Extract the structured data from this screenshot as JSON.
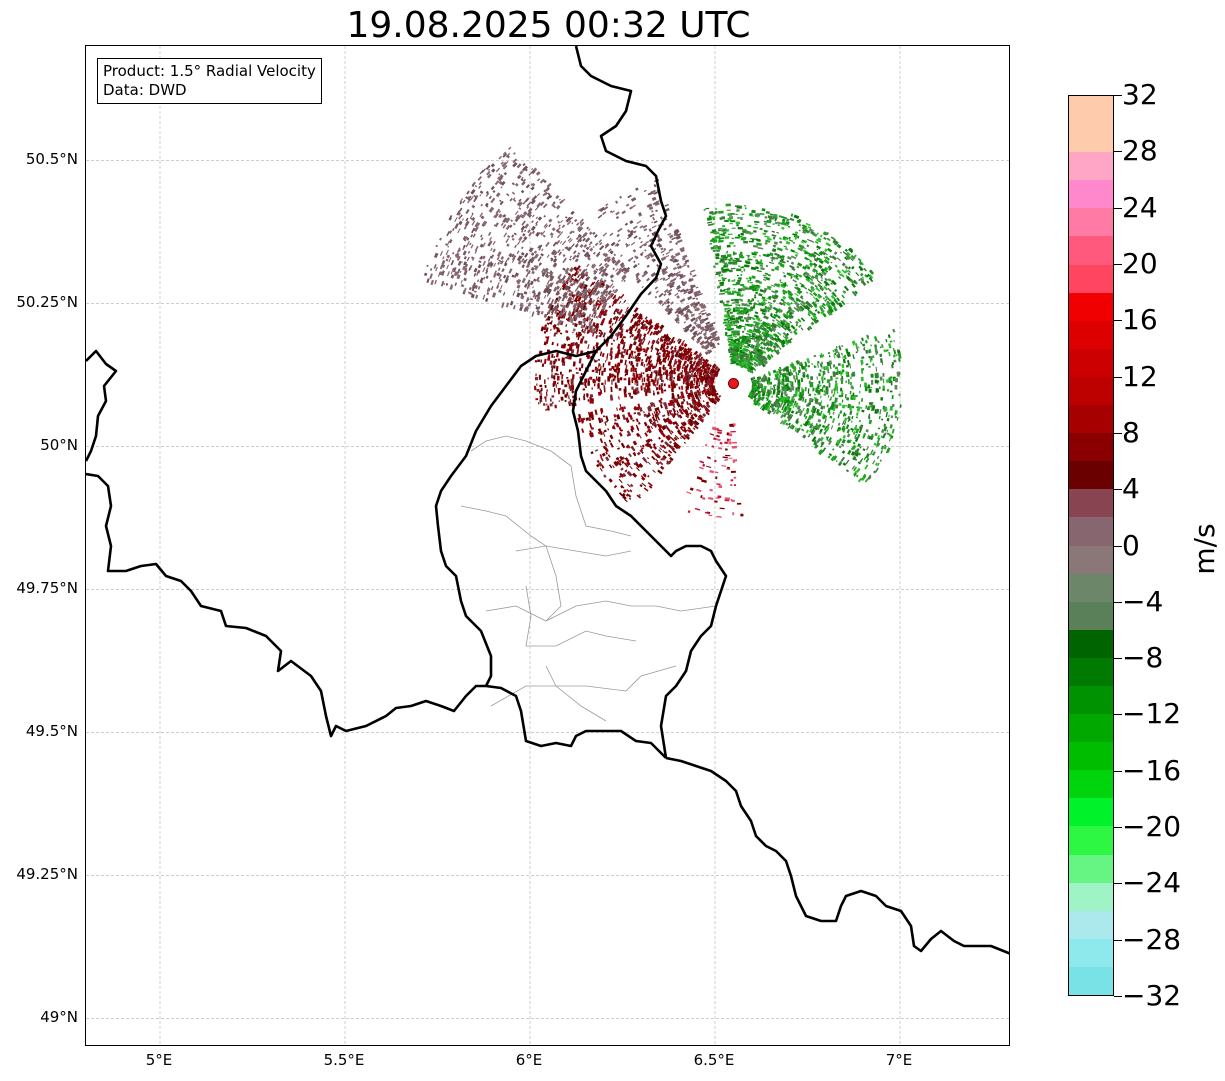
{
  "title": "19.08.2025 00:32 UTC",
  "info_box": {
    "product": "Product: 1.5° Radial Velocity",
    "data": "Data: DWD"
  },
  "map": {
    "lon_range": [
      4.8,
      7.3
    ],
    "lat_range": [
      48.95,
      50.7
    ],
    "lat_ticks": [
      {
        "value": 50.5,
        "label": "50.5°N"
      },
      {
        "value": 50.25,
        "label": "50.25°N"
      },
      {
        "value": 50.0,
        "label": "50°N"
      },
      {
        "value": 49.75,
        "label": "49.75°N"
      },
      {
        "value": 49.5,
        "label": "49.5°N"
      },
      {
        "value": 49.25,
        "label": "49.25°N"
      },
      {
        "value": 49.0,
        "label": "49°N"
      }
    ],
    "lon_ticks": [
      {
        "value": 5.0,
        "label": "5°E"
      },
      {
        "value": 5.5,
        "label": "5.5°E"
      },
      {
        "value": 6.0,
        "label": "6°E"
      },
      {
        "value": 6.5,
        "label": "6.5°E"
      },
      {
        "value": 7.0,
        "label": "7°E"
      }
    ],
    "radar_site": {
      "lon": 6.55,
      "lat": 50.11,
      "color": "#e8191e"
    }
  },
  "colorbar": {
    "unit": "m/s",
    "min": -32,
    "max": 32,
    "tick_values": [
      "32",
      "28",
      "24",
      "20",
      "16",
      "12",
      "8",
      "4",
      "0",
      "−4",
      "−8",
      "−12",
      "−16",
      "−20",
      "−24",
      "−28",
      "−32"
    ],
    "colors_bottom_to_top": [
      "#78e2e6",
      "#8ee9ec",
      "#ace9ec",
      "#9ff3c6",
      "#66f582",
      "#2ef744",
      "#00f22a",
      "#00d40c",
      "#00bd00",
      "#00a800",
      "#009200",
      "#007a00",
      "#006400",
      "#5a8059",
      "#6b8669",
      "#8a7878",
      "#876670",
      "#884451",
      "#6a0000",
      "#8a0000",
      "#a60000",
      "#bd0000",
      "#cc0000",
      "#dd0000",
      "#f00000",
      "#ff4560",
      "#ff5a7d",
      "#ff7aa4",
      "#ff88cc",
      "#ffa6c7",
      "#ffcbad",
      "#ffcbad"
    ]
  },
  "colors": {
    "inbound_green": "#1fa31f",
    "outbound_red": "#7a0000",
    "low_velocity": "#7a5a62",
    "border": "#000000",
    "region_border": "#9a9a9a",
    "grid": "#b0b0b0"
  }
}
